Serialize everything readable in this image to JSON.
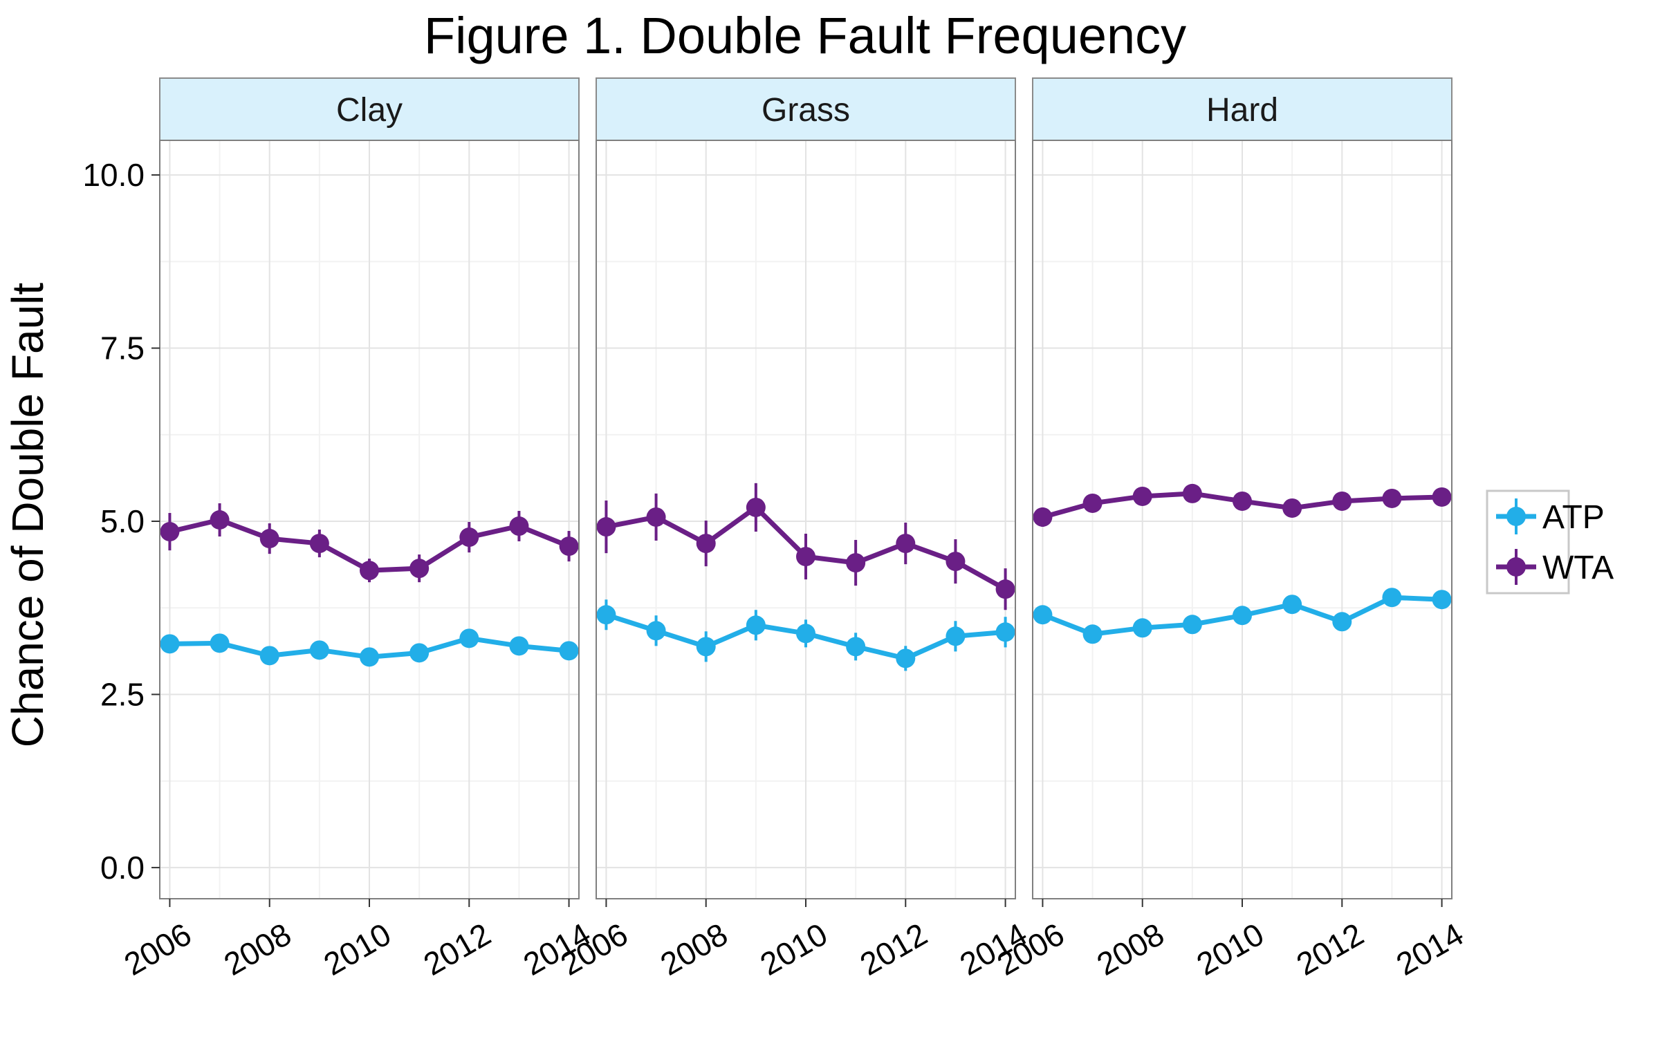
{
  "chart_data": {
    "type": "line",
    "title": "Figure 1. Double Fault Frequency",
    "xlabel": "",
    "ylabel": "Chance of Double Fault",
    "x": [
      2006,
      2007,
      2008,
      2009,
      2010,
      2011,
      2012,
      2013,
      2014
    ],
    "x_ticks": [
      "2006",
      "2008",
      "2010",
      "2012",
      "2014"
    ],
    "y_ticks": [
      "0.0",
      "2.5",
      "5.0",
      "7.5",
      "10.0"
    ],
    "ylim": [
      -0.45,
      10.5
    ],
    "xlim": [
      2005.8,
      2014.2
    ],
    "grid": true,
    "legend_position": "right",
    "error_bars": true,
    "colors": {
      "ATP": "#22aee8",
      "WTA": "#6a1f86"
    },
    "panels": [
      {
        "name": "Clay",
        "series": [
          {
            "name": "ATP",
            "values": [
              3.23,
              3.24,
              3.06,
              3.14,
              3.04,
              3.1,
              3.31,
              3.2,
              3.13
            ],
            "errors": [
              0.1,
              0.1,
              0.08,
              0.08,
              0.08,
              0.08,
              0.1,
              0.09,
              0.09
            ]
          },
          {
            "name": "WTA",
            "values": [
              4.85,
              5.02,
              4.75,
              4.68,
              4.29,
              4.32,
              4.77,
              4.93,
              4.64
            ],
            "errors": [
              0.27,
              0.24,
              0.22,
              0.2,
              0.17,
              0.2,
              0.22,
              0.22,
              0.22
            ]
          }
        ]
      },
      {
        "name": "Grass",
        "series": [
          {
            "name": "ATP",
            "values": [
              3.65,
              3.42,
              3.19,
              3.5,
              3.38,
              3.19,
              3.02,
              3.34,
              3.4
            ],
            "errors": [
              0.22,
              0.22,
              0.22,
              0.22,
              0.2,
              0.2,
              0.18,
              0.22,
              0.22
            ]
          },
          {
            "name": "WTA",
            "values": [
              4.92,
              5.06,
              4.68,
              5.2,
              4.49,
              4.4,
              4.68,
              4.42,
              4.02
            ],
            "errors": [
              0.38,
              0.34,
              0.33,
              0.35,
              0.33,
              0.33,
              0.3,
              0.32,
              0.3
            ]
          }
        ]
      },
      {
        "name": "Hard",
        "series": [
          {
            "name": "ATP",
            "values": [
              3.65,
              3.37,
              3.46,
              3.51,
              3.64,
              3.8,
              3.55,
              3.9,
              3.87
            ],
            "errors": [
              0.05,
              0.05,
              0.05,
              0.05,
              0.05,
              0.05,
              0.05,
              0.05,
              0.05
            ]
          },
          {
            "name": "WTA",
            "values": [
              5.06,
              5.26,
              5.36,
              5.4,
              5.29,
              5.19,
              5.29,
              5.33,
              5.35
            ],
            "errors": [
              0.14,
              0.08,
              0.08,
              0.08,
              0.08,
              0.08,
              0.08,
              0.08,
              0.08
            ]
          }
        ]
      }
    ]
  }
}
